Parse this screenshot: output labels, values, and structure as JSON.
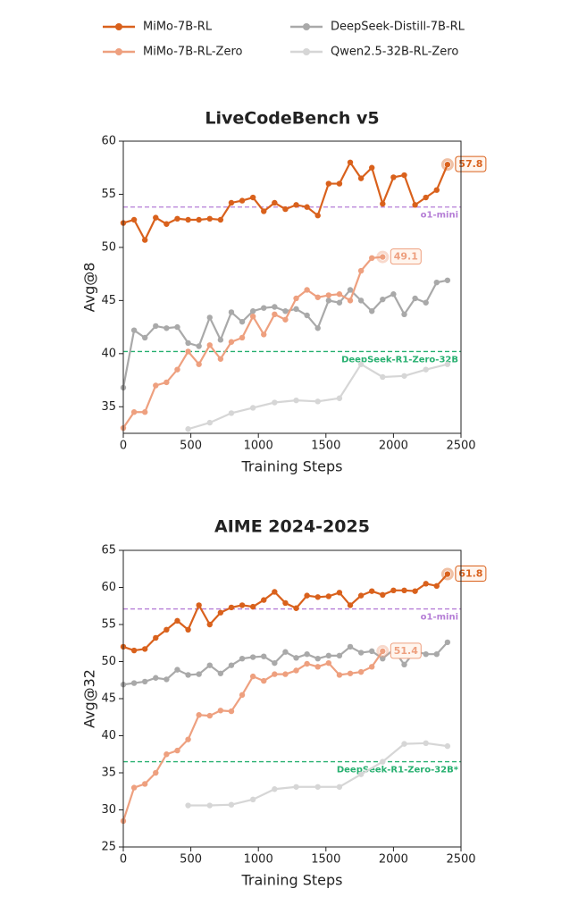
{
  "chart_data": [
    {
      "type": "line",
      "title": "LiveCodeBench v5",
      "x_label": "Training Steps",
      "y_label": "Avg@8",
      "xlim": [
        0,
        2500
      ],
      "xticks": [
        0,
        500,
        1000,
        1500,
        2000,
        2500
      ],
      "ylim": [
        32.5,
        60
      ],
      "yticks": [
        35,
        40,
        45,
        50,
        55,
        60
      ],
      "reference_lines": [
        {
          "label": "o1-mini",
          "value": 53.8,
          "color": "#b57ed6"
        },
        {
          "label": "DeepSeek-R1-Zero-32B",
          "value": 40.2,
          "color": "#27b070"
        }
      ],
      "series": [
        {
          "name": "MiMo-7B-RL",
          "color": "#d9611c",
          "end_label": true,
          "x": [
            0,
            80,
            160,
            240,
            320,
            400,
            480,
            560,
            640,
            720,
            800,
            880,
            960,
            1040,
            1120,
            1200,
            1280,
            1360,
            1440,
            1520,
            1600,
            1680,
            1760,
            1840,
            1920,
            2000,
            2080,
            2160,
            2240,
            2320,
            2400
          ],
          "values": [
            52.3,
            52.6,
            50.7,
            52.8,
            52.2,
            52.7,
            52.6,
            52.6,
            52.7,
            52.6,
            54.2,
            54.4,
            54.7,
            53.4,
            54.2,
            53.6,
            54.0,
            53.8,
            53.0,
            56.0,
            56.0,
            58.0,
            56.5,
            57.5,
            54.1,
            56.6,
            56.8,
            54.0,
            54.7,
            55.4,
            57.8
          ]
        },
        {
          "name": "MiMo-7B-RL-Zero",
          "color": "#eea07f",
          "end_label": true,
          "x": [
            0,
            80,
            160,
            240,
            320,
            400,
            480,
            560,
            640,
            720,
            800,
            880,
            960,
            1040,
            1120,
            1200,
            1280,
            1360,
            1440,
            1520,
            1600,
            1680,
            1760,
            1840,
            1920
          ],
          "values": [
            33.0,
            34.5,
            34.5,
            37.0,
            37.3,
            38.5,
            40.2,
            39.0,
            40.8,
            39.5,
            41.1,
            41.5,
            43.5,
            41.8,
            43.7,
            43.2,
            45.2,
            46.0,
            45.3,
            45.5,
            45.6,
            45.0,
            47.8,
            49.0,
            49.1
          ]
        },
        {
          "name": "DeepSeek-Distill-7B-RL",
          "color": "#a9a9a9",
          "end_label": false,
          "x": [
            0,
            80,
            160,
            240,
            320,
            400,
            480,
            560,
            640,
            720,
            800,
            880,
            960,
            1040,
            1120,
            1200,
            1280,
            1360,
            1440,
            1520,
            1600,
            1680,
            1760,
            1840,
            1920,
            2000,
            2080,
            2160,
            2240,
            2320,
            2400
          ],
          "values": [
            36.8,
            42.2,
            41.5,
            42.6,
            42.4,
            42.5,
            41.0,
            40.7,
            43.4,
            41.3,
            43.9,
            43.0,
            44.0,
            44.3,
            44.4,
            44.0,
            44.2,
            43.6,
            42.4,
            45.0,
            44.8,
            46.0,
            45.0,
            44.0,
            45.1,
            45.6,
            43.7,
            45.2,
            44.8,
            46.7,
            46.9
          ]
        },
        {
          "name": "Qwen2.5-32B-RL-Zero",
          "color": "#d6d6d6",
          "end_label": false,
          "x": [
            480,
            640,
            800,
            960,
            1120,
            1280,
            1440,
            1600,
            1760,
            1920,
            2080,
            2240,
            2400
          ],
          "values": [
            32.9,
            33.5,
            34.4,
            34.9,
            35.4,
            35.6,
            35.5,
            35.8,
            39.0,
            37.8,
            37.9,
            38.5,
            39.0
          ]
        }
      ]
    },
    {
      "type": "line",
      "title": "AIME 2024-2025",
      "x_label": "Training Steps",
      "y_label": "Avg@32",
      "xlim": [
        0,
        2500
      ],
      "xticks": [
        0,
        500,
        1000,
        1500,
        2000,
        2500
      ],
      "ylim": [
        25,
        65
      ],
      "yticks": [
        25,
        30,
        35,
        40,
        45,
        50,
        55,
        60,
        65
      ],
      "reference_lines": [
        {
          "label": "o1-mini",
          "value": 57.1,
          "color": "#b57ed6"
        },
        {
          "label": "DeepSeek-R1-Zero-32B*",
          "value": 36.5,
          "color": "#27b070"
        }
      ],
      "series": [
        {
          "color": "#d9611c",
          "end_label": true,
          "x": [
            0,
            80,
            160,
            240,
            320,
            400,
            480,
            560,
            640,
            720,
            800,
            880,
            960,
            1040,
            1120,
            1200,
            1280,
            1360,
            1440,
            1520,
            1600,
            1680,
            1760,
            1840,
            1920,
            2000,
            2080,
            2160,
            2240,
            2320,
            2400
          ],
          "values": [
            52.0,
            51.5,
            51.7,
            53.2,
            54.3,
            55.5,
            54.3,
            57.6,
            55.0,
            56.6,
            57.3,
            57.6,
            57.4,
            58.3,
            59.4,
            57.9,
            57.2,
            58.9,
            58.7,
            58.8,
            59.3,
            57.6,
            58.9,
            59.5,
            59.0,
            59.6,
            59.6,
            59.5,
            60.5,
            60.2,
            61.8
          ]
        },
        {
          "color": "#eea07f",
          "end_label": true,
          "x": [
            0,
            80,
            160,
            240,
            320,
            400,
            480,
            560,
            640,
            720,
            800,
            880,
            960,
            1040,
            1120,
            1200,
            1280,
            1360,
            1440,
            1520,
            1600,
            1680,
            1760,
            1840,
            1920
          ],
          "values": [
            28.5,
            33.0,
            33.5,
            35.0,
            37.5,
            38.0,
            39.5,
            42.8,
            42.7,
            43.4,
            43.3,
            45.5,
            48.0,
            47.4,
            48.3,
            48.3,
            48.8,
            49.7,
            49.3,
            49.8,
            48.2,
            48.4,
            48.6,
            49.3,
            51.4
          ]
        },
        {
          "color": "#a9a9a9",
          "end_label": false,
          "x": [
            0,
            80,
            160,
            240,
            320,
            400,
            480,
            560,
            640,
            720,
            800,
            880,
            960,
            1040,
            1120,
            1200,
            1280,
            1360,
            1440,
            1520,
            1600,
            1680,
            1760,
            1840,
            1920,
            2000,
            2080,
            2160,
            2240,
            2320,
            2400
          ],
          "values": [
            46.9,
            47.1,
            47.3,
            47.8,
            47.6,
            48.9,
            48.2,
            48.3,
            49.5,
            48.4,
            49.5,
            50.4,
            50.6,
            50.7,
            49.8,
            51.3,
            50.5,
            51.0,
            50.4,
            50.8,
            50.8,
            52.0,
            51.2,
            51.4,
            50.4,
            51.6,
            49.6,
            51.4,
            51.0,
            51.0,
            52.6
          ]
        },
        {
          "color": "#d6d6d6",
          "end_label": false,
          "x": [
            480,
            640,
            800,
            960,
            1120,
            1280,
            1440,
            1600,
            1760,
            1920,
            2080,
            2240,
            2400
          ],
          "values": [
            30.6,
            30.6,
            30.7,
            31.4,
            32.8,
            33.1,
            33.1,
            33.1,
            34.8,
            36.5,
            38.9,
            39.0,
            38.6
          ]
        }
      ]
    }
  ]
}
